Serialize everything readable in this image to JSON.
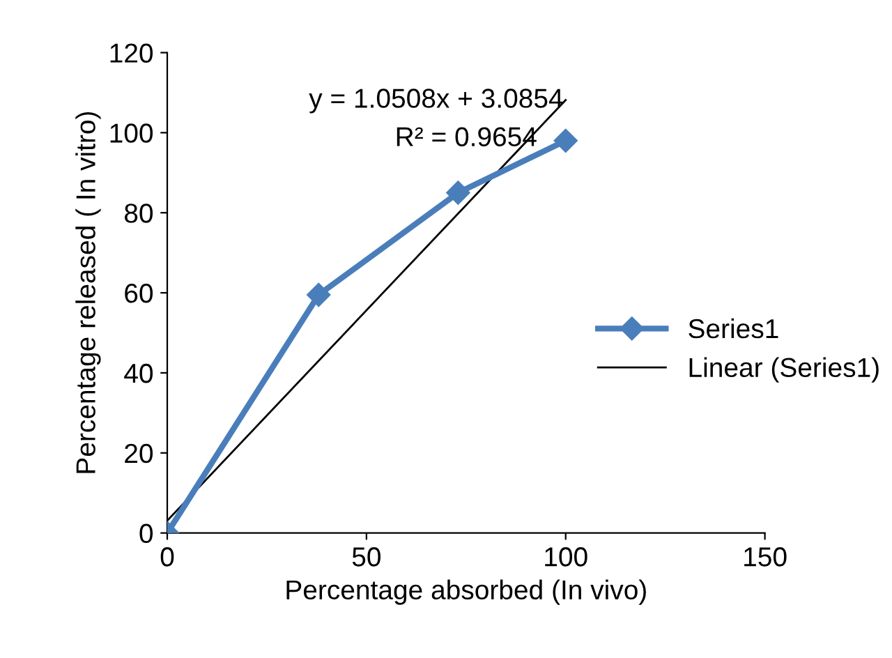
{
  "chart_data": {
    "type": "line",
    "xlabel": "Percentage absorbed (In vivo)",
    "ylabel": "Percentage released ( In vitro)",
    "annotations": [
      "y = 1.0508x + 3.0854",
      "R² = 0.9654"
    ],
    "series": [
      {
        "name": "Series1",
        "color": "#4a7ebb",
        "x": [
          0,
          38,
          73,
          100
        ],
        "values": [
          0,
          59.5,
          85,
          98
        ],
        "marker": "diamond",
        "line_style": "solid"
      },
      {
        "name": "Linear (Series1)",
        "type": "line",
        "color": "#000000",
        "x": [
          0,
          100
        ],
        "values": [
          3.0854,
          108.1654
        ],
        "marker": "none",
        "line_style": "solid"
      }
    ],
    "xlim": [
      0,
      150
    ],
    "xticks": [
      0,
      50,
      100,
      150
    ],
    "ylim": [
      0,
      120
    ],
    "yticks": [
      0,
      20,
      40,
      60,
      80,
      100,
      120
    ],
    "grid": false,
    "legend": "right"
  }
}
